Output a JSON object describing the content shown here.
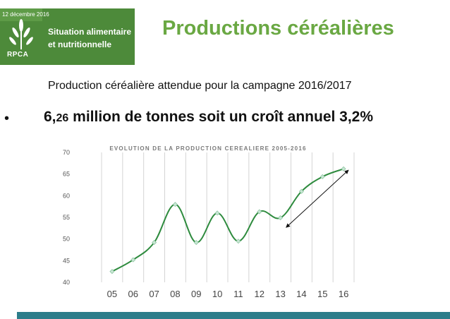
{
  "header": {
    "date": "12 décembre 2016",
    "badge_line1": "Situation alimentaire",
    "badge_line2": "et nutritionnelle",
    "logo_label": "RPCA",
    "title": "Productions céréalières"
  },
  "main": {
    "subtitle": "Production céréalière attendue pour la campagne 2016/2017",
    "bullet": "•",
    "headline_value": "6,",
    "headline_small": "26",
    "headline_rest": " million de tonnes soit un croît annuel 3,2%"
  },
  "colors": {
    "accent_green": "#5e9b47",
    "title_green": "#6aa843",
    "line_green": "#2e8b3e",
    "footer_teal": "#2c7d8a"
  },
  "chart_data": {
    "type": "line",
    "title": "EVOLUTION DE LA PRODUCTION CEREALIERE 2005-2016",
    "categories": [
      "05",
      "06",
      "07",
      "08",
      "09",
      "10",
      "11",
      "12",
      "13",
      "14",
      "15",
      "16"
    ],
    "values": [
      42.5,
      45.2,
      49.2,
      58.0,
      49.2,
      56.0,
      49.5,
      56.3,
      54.9,
      61.0,
      64.4,
      66.2
    ],
    "yticks": [
      40,
      45,
      50,
      55,
      60,
      65,
      70
    ],
    "ylim": [
      40,
      70
    ],
    "grid": "vertical",
    "annotation": "double-headed arrow indicating upward trend from 13 to 16"
  }
}
